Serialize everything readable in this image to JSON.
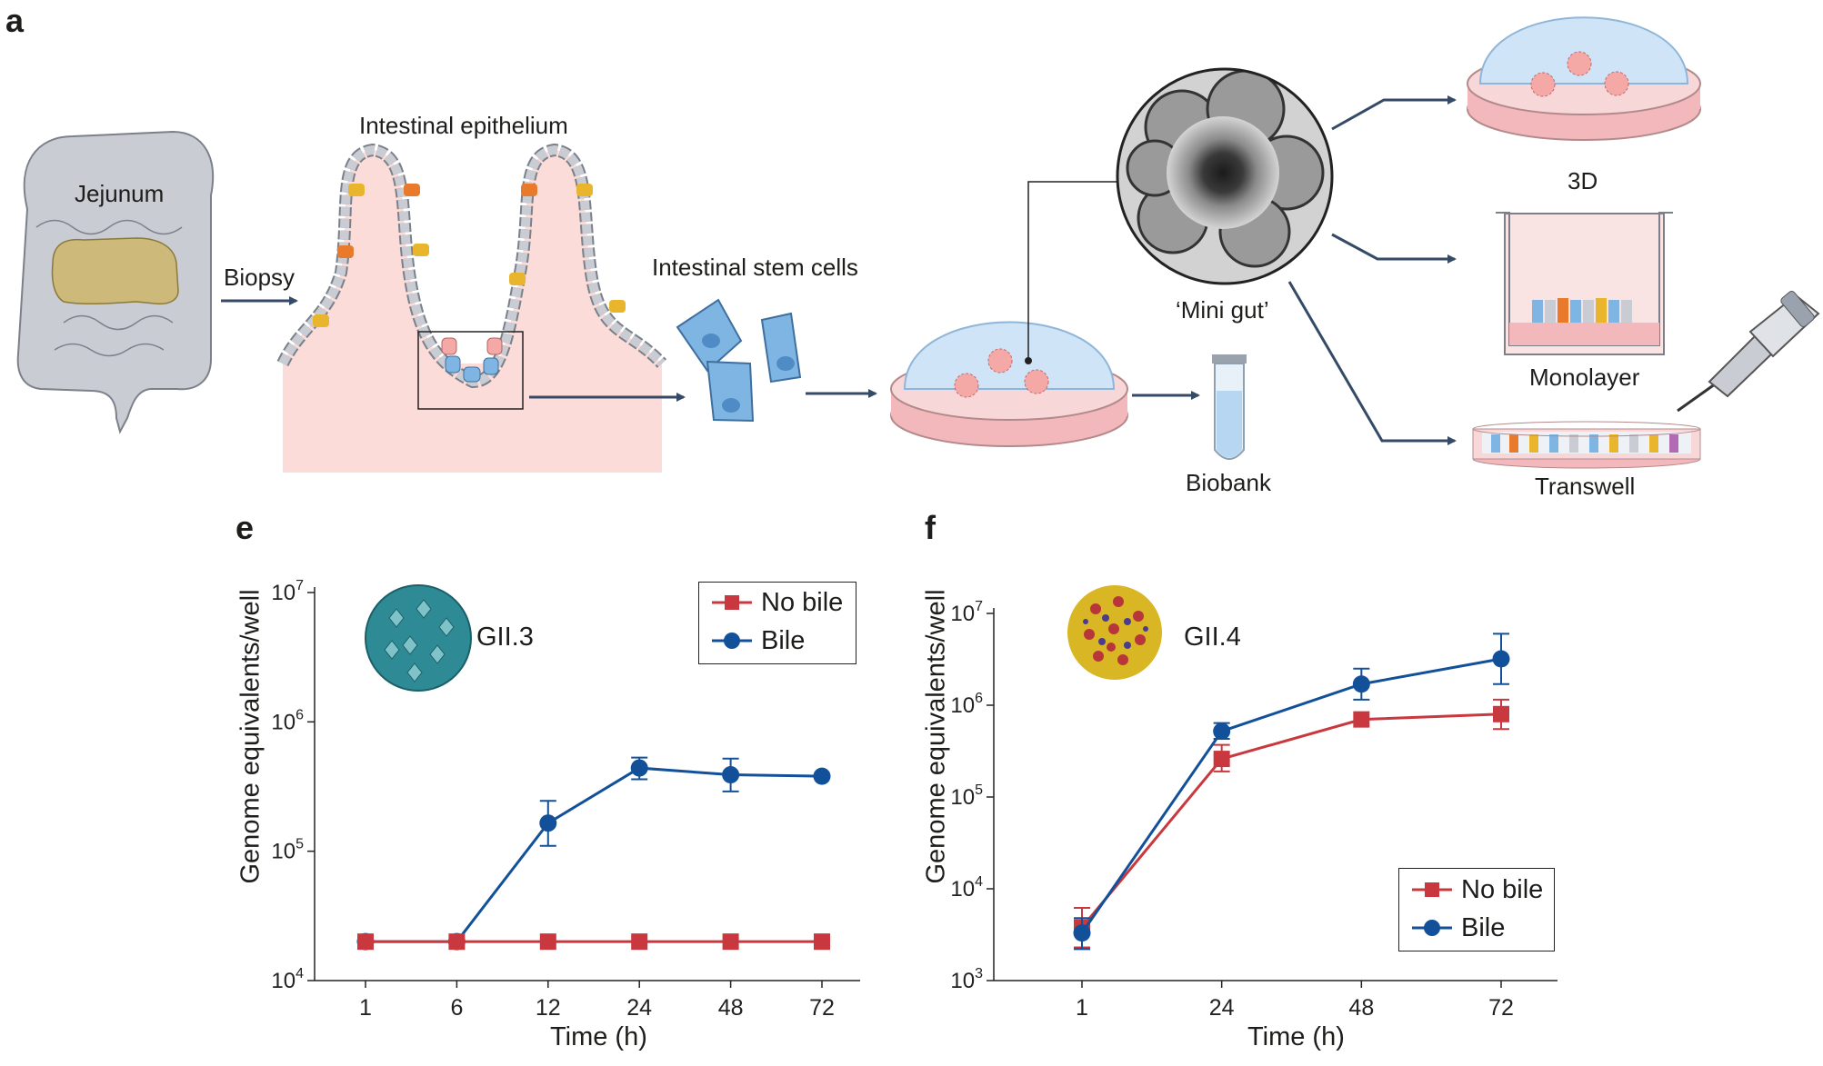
{
  "panel_a": {
    "letter": "a",
    "labels": {
      "jejunum": "Jejunum",
      "biopsy": "Biopsy",
      "epithelium": "Intestinal epithelium",
      "stem_cells": "Intestinal stem cells",
      "mini_gut": "‘Mini gut’",
      "biobank": "Biobank",
      "three_d": "3D",
      "monolayer": "Monolayer",
      "transwell": "Transwell"
    },
    "colors": {
      "tissue_pink": "#fcdcd8",
      "cell_grey": "#c9ccd3",
      "stem_blue": "#7fb5e3",
      "dome_blue": "#cfe4f6",
      "dish_pink": "#f3b8bb",
      "arrow": "#344a66",
      "jejunum_khaki": "#cdb97a"
    }
  },
  "chart_data": [
    {
      "panel": "e",
      "type": "line",
      "virus_label": "GII.3",
      "xlabel": "Time (h)",
      "ylabel": "Genome equivalents/well",
      "yscale": "log",
      "ylim": [
        10000,
        10000000
      ],
      "categories": [
        "1",
        "6",
        "12",
        "24",
        "48",
        "72"
      ],
      "ytick_labels": [
        {
          "base": "10",
          "exp": "4"
        },
        {
          "base": "10",
          "exp": "5"
        },
        {
          "base": "10",
          "exp": "6"
        },
        {
          "base": "10",
          "exp": "7"
        }
      ],
      "legend": {
        "position": "top-right"
      },
      "series": [
        {
          "name": "No bile",
          "color": "#c8383e",
          "marker": "square",
          "values": [
            20000,
            20000,
            20000,
            20000,
            20000,
            20000
          ],
          "err_low": [
            null,
            null,
            null,
            null,
            null,
            null
          ],
          "err_high": [
            null,
            null,
            null,
            null,
            null,
            null
          ]
        },
        {
          "name": "Bile",
          "color": "#12509a",
          "marker": "circle",
          "values": [
            20000,
            20000,
            165000,
            440000,
            390000,
            380000
          ],
          "err_low": [
            null,
            null,
            110000,
            360000,
            290000,
            null
          ],
          "err_high": [
            null,
            null,
            245000,
            530000,
            520000,
            null
          ]
        }
      ]
    },
    {
      "panel": "f",
      "type": "line",
      "virus_label": "GII.4",
      "xlabel": "Time (h)",
      "ylabel": "Genome equivalents/well",
      "yscale": "log",
      "ylim": [
        1000,
        10000000
      ],
      "categories": [
        "1",
        "24",
        "48",
        "72"
      ],
      "ytick_labels": [
        {
          "base": "10",
          "exp": "3"
        },
        {
          "base": "10",
          "exp": "4"
        },
        {
          "base": "10",
          "exp": "5"
        },
        {
          "base": "10",
          "exp": "6"
        },
        {
          "base": "10",
          "exp": "7"
        }
      ],
      "legend": {
        "position": "bottom-right"
      },
      "series": [
        {
          "name": "No bile",
          "color": "#c8383e",
          "marker": "square",
          "values": [
            3800,
            260000,
            700000,
            800000
          ],
          "err_low": [
            2300,
            190000,
            null,
            550000
          ],
          "err_high": [
            6200,
            370000,
            null,
            1150000
          ]
        },
        {
          "name": "Bile",
          "color": "#12509a",
          "marker": "circle",
          "values": [
            3300,
            520000,
            1700000,
            3200000
          ],
          "err_low": [
            2200,
            430000,
            1150000,
            1700000
          ],
          "err_high": [
            4800,
            640000,
            2500000,
            6000000
          ]
        }
      ]
    }
  ]
}
